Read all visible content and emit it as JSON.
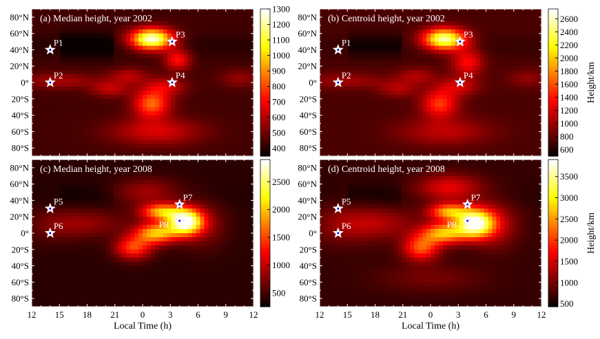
{
  "chart_data": [
    {
      "type": "heatmap",
      "title": "(a) Median height, year 2002",
      "xlabel": "",
      "xlim": [
        12,
        36
      ],
      "ylim": [
        -90,
        90
      ],
      "clim": [
        350,
        1300
      ],
      "colorbar_ticks": [
        "400",
        "500",
        "600",
        "700",
        "800",
        "900",
        "1000",
        "1100",
        "1200",
        "1300"
      ],
      "colorbar_label": "",
      "base": 430,
      "blobs": [
        {
          "lt": 25.0,
          "lat": 53,
          "amp": 880,
          "sx": 1.6,
          "sy": 9
        },
        {
          "lt": 27.8,
          "lat": 28,
          "amp": 300,
          "sx": 1.0,
          "sy": 9
        },
        {
          "lt": 25.0,
          "lat": -26,
          "amp": 420,
          "sx": 1.4,
          "sy": 12
        },
        {
          "lt": 26.5,
          "lat": -5,
          "amp": 200,
          "sx": 1.6,
          "sy": 8
        },
        {
          "lt": 15.0,
          "lat": 2,
          "amp": 150,
          "sx": 3.0,
          "sy": 7
        },
        {
          "lt": 20.5,
          "lat": -8,
          "amp": 180,
          "sx": 1.5,
          "sy": 7
        },
        {
          "lt": 22.5,
          "lat": 8,
          "amp": 170,
          "sx": 1.5,
          "sy": 7
        },
        {
          "lt": 25.5,
          "lat": -60,
          "amp": 220,
          "sx": 3.5,
          "sy": 12
        },
        {
          "lt": 34.5,
          "lat": 5,
          "amp": 120,
          "sx": 1.5,
          "sy": 8
        }
      ],
      "points": [
        {
          "label": "P1",
          "lt": 14,
          "lat": 40
        },
        {
          "label": "P2",
          "lt": 14,
          "lat": 0
        },
        {
          "label": "P3",
          "lt": 27.2,
          "lat": 50
        },
        {
          "label": "P4",
          "lt": 27.2,
          "lat": 0
        }
      ]
    },
    {
      "type": "heatmap",
      "title": "(b) Centroid height, year 2002",
      "xlabel": "",
      "xlim": [
        12,
        36
      ],
      "ylim": [
        -90,
        90
      ],
      "clim": [
        500,
        2750
      ],
      "colorbar_ticks": [
        "600",
        "800",
        "1000",
        "1200",
        "1400",
        "1600",
        "1800",
        "2000",
        "2200",
        "2400",
        "2600"
      ],
      "colorbar_label": "Height/km",
      "base": 720,
      "blobs": [
        {
          "lt": 25.5,
          "lat": 53,
          "amp": 1900,
          "sx": 1.6,
          "sy": 9
        },
        {
          "lt": 28.0,
          "lat": 25,
          "amp": 650,
          "sx": 1.2,
          "sy": 12
        },
        {
          "lt": 25.0,
          "lat": -26,
          "amp": 800,
          "sx": 1.4,
          "sy": 12
        },
        {
          "lt": 27.0,
          "lat": -5,
          "amp": 450,
          "sx": 1.6,
          "sy": 8
        },
        {
          "lt": 15.0,
          "lat": 2,
          "amp": 300,
          "sx": 3.0,
          "sy": 7
        },
        {
          "lt": 20.5,
          "lat": -8,
          "amp": 350,
          "sx": 1.5,
          "sy": 7
        },
        {
          "lt": 22.5,
          "lat": 8,
          "amp": 350,
          "sx": 1.5,
          "sy": 7
        },
        {
          "lt": 25.5,
          "lat": -60,
          "amp": 400,
          "sx": 3.5,
          "sy": 12
        },
        {
          "lt": 34.5,
          "lat": 5,
          "amp": 250,
          "sx": 1.5,
          "sy": 8
        }
      ],
      "points": [
        {
          "label": "P1",
          "lt": 14,
          "lat": 40
        },
        {
          "label": "P2",
          "lt": 14,
          "lat": 0
        },
        {
          "label": "P3",
          "lt": 27.2,
          "lat": 50
        },
        {
          "label": "P4",
          "lt": 27.2,
          "lat": 0
        }
      ]
    },
    {
      "type": "heatmap",
      "title": "(c) Median height, year 2008",
      "xlabel": "Local Time (h)",
      "xlim": [
        12,
        36
      ],
      "ylim": [
        -90,
        90
      ],
      "clim": [
        250,
        2900
      ],
      "colorbar_ticks": [
        "500",
        "1000",
        "1500",
        "2000",
        "2500"
      ],
      "colorbar_label": "",
      "base": 380,
      "blobs": [
        {
          "lt": 28.6,
          "lat": 14,
          "amp": 2500,
          "sx": 1.3,
          "sy": 11
        },
        {
          "lt": 26.0,
          "lat": 26,
          "amp": 1500,
          "sx": 1.5,
          "sy": 7
        },
        {
          "lt": 25.5,
          "lat": 0,
          "amp": 1600,
          "sx": 1.6,
          "sy": 9
        },
        {
          "lt": 23.0,
          "lat": -18,
          "amp": 1100,
          "sx": 1.4,
          "sy": 10
        },
        {
          "lt": 24.5,
          "lat": 50,
          "amp": 500,
          "sx": 2.5,
          "sy": 12
        },
        {
          "lt": 18.5,
          "lat": 12,
          "amp": 350,
          "sx": 3.0,
          "sy": 12
        },
        {
          "lt": 14.5,
          "lat": 10,
          "amp": 250,
          "sx": 2.5,
          "sy": 15
        },
        {
          "lt": 30.5,
          "lat": 10,
          "amp": 400,
          "sx": 1.8,
          "sy": 20
        }
      ],
      "points": [
        {
          "label": "P5",
          "lt": 14,
          "lat": 30
        },
        {
          "label": "P6",
          "lt": 14,
          "lat": 0
        },
        {
          "label": "P7",
          "lt": 28,
          "lat": 35
        },
        {
          "label": "P8",
          "lt": 28,
          "lat": 15
        }
      ]
    },
    {
      "type": "heatmap",
      "title": "(d) Centroid height, year 2008",
      "xlabel": "Local Time (h)",
      "xlim": [
        12,
        36
      ],
      "ylim": [
        -90,
        90
      ],
      "clim": [
        430,
        3900
      ],
      "colorbar_ticks": [
        "500",
        "1000",
        "1500",
        "2000",
        "2500",
        "3000",
        "3500"
      ],
      "colorbar_label": "Height/km",
      "base": 650,
      "blobs": [
        {
          "lt": 28.8,
          "lat": 12,
          "amp": 3100,
          "sx": 1.4,
          "sy": 12
        },
        {
          "lt": 26.0,
          "lat": 26,
          "amp": 1900,
          "sx": 1.5,
          "sy": 7
        },
        {
          "lt": 25.5,
          "lat": 0,
          "amp": 2000,
          "sx": 1.7,
          "sy": 9
        },
        {
          "lt": 23.0,
          "lat": -18,
          "amp": 1500,
          "sx": 1.4,
          "sy": 11
        },
        {
          "lt": 26.0,
          "lat": 55,
          "amp": 1000,
          "sx": 2.5,
          "sy": 12
        },
        {
          "lt": 18.5,
          "lat": 12,
          "amp": 600,
          "sx": 3.0,
          "sy": 14
        },
        {
          "lt": 14.5,
          "lat": 10,
          "amp": 400,
          "sx": 2.5,
          "sy": 18
        },
        {
          "lt": 31.0,
          "lat": 10,
          "amp": 700,
          "sx": 1.8,
          "sy": 20
        },
        {
          "lt": 24.0,
          "lat": -55,
          "amp": 350,
          "sx": 4.0,
          "sy": 12
        }
      ],
      "points": [
        {
          "label": "P5",
          "lt": 14,
          "lat": 30
        },
        {
          "label": "P6",
          "lt": 14,
          "lat": 0
        },
        {
          "label": "P7",
          "lt": 28,
          "lat": 35
        },
        {
          "label": "P8",
          "lt": 28,
          "lat": 15
        }
      ]
    }
  ],
  "axes": {
    "y_ticks": [
      "80°N",
      "60°N",
      "40°N",
      "20°N",
      "0°",
      "20°S",
      "40°S",
      "60°S",
      "80°S"
    ],
    "y_tick_values": [
      80,
      60,
      40,
      20,
      0,
      -20,
      -40,
      -60,
      -80
    ],
    "x_ticks": [
      "12",
      "15",
      "18",
      "21",
      "0",
      "3",
      "6",
      "9",
      "12"
    ],
    "x_tick_values": [
      12,
      15,
      18,
      21,
      24,
      27,
      30,
      33,
      36
    ]
  },
  "colors": {
    "star_fill": "#ffffff",
    "star_center": "#0000ff",
    "label": "#ffffff"
  }
}
